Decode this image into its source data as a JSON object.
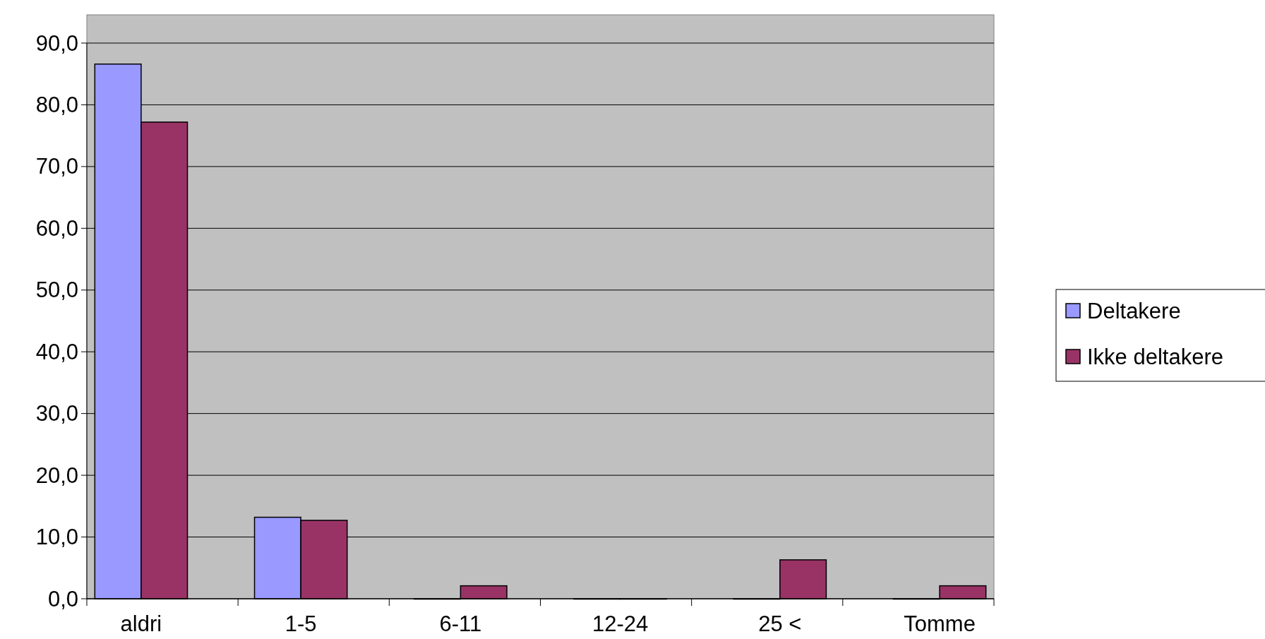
{
  "chart_data": {
    "type": "bar",
    "categories": [
      "aldri",
      "1-5",
      "6-11",
      "12-24",
      "25 <",
      "Tomme"
    ],
    "series": [
      {
        "name": "Deltakere",
        "color": "#9999ff",
        "values": [
          86.6,
          13.2,
          0,
          0,
          0,
          0
        ]
      },
      {
        "name": "Ikke deltakere",
        "color": "#993366",
        "values": [
          77.2,
          12.7,
          2.1,
          0,
          6.3,
          2.1
        ]
      }
    ],
    "ylim": [
      0,
      90
    ],
    "yticks": [
      {
        "value": 0,
        "label": "0,0"
      },
      {
        "value": 10,
        "label": "10,0"
      },
      {
        "value": 20,
        "label": "20,0"
      },
      {
        "value": 30,
        "label": "30,0"
      },
      {
        "value": 40,
        "label": "40,0"
      },
      {
        "value": 50,
        "label": "50,0"
      },
      {
        "value": 60,
        "label": "60,0"
      },
      {
        "value": 70,
        "label": "70,0"
      },
      {
        "value": 80,
        "label": "80,0"
      },
      {
        "value": 90,
        "label": "90,0"
      }
    ],
    "grid": "y",
    "legend": "right"
  }
}
